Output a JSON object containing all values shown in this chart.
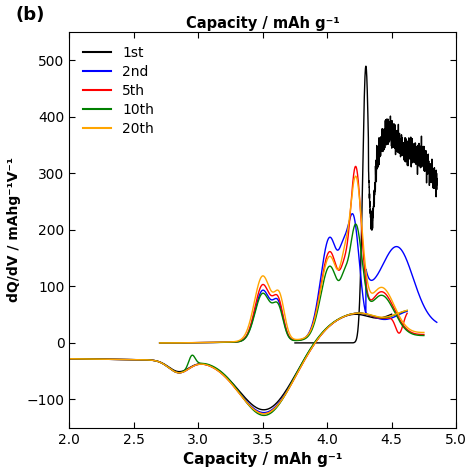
{
  "title_top": "Capacity / mAh g⁻¹",
  "xlabel": "Capacity / mAh g⁻¹",
  "ylabel": "dQ/dV / mAhg⁻¹V⁻¹",
  "panel_label": "(b)",
  "xlim": [
    2.0,
    5.0
  ],
  "ylim": [
    -150,
    550
  ],
  "yticks": [
    -100,
    0,
    100,
    200,
    300,
    400,
    500
  ],
  "xticks": [
    2.0,
    2.5,
    3.0,
    3.5,
    4.0,
    4.5,
    5.0
  ],
  "legend_entries": [
    "1st",
    "2nd",
    "5th",
    "10th",
    "20th"
  ],
  "colors": [
    "#000000",
    "#0000ff",
    "#ff0000",
    "#008000",
    "#ffa500"
  ],
  "background_color": "#ffffff",
  "linewidth": 1.0
}
